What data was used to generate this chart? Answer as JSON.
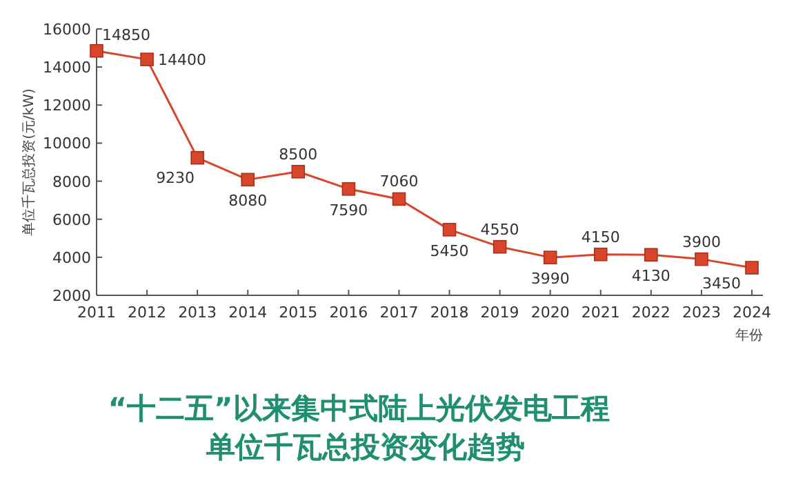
{
  "chart_data": {
    "type": "line",
    "title": "“十二五”以来集中式陆上光伏发电工程",
    "subtitle": "单位千瓦总投资变化趋势",
    "xlabel": "年份",
    "ylabel": "单位千瓦总投资(元/kW)",
    "categories": [
      "2011",
      "2012",
      "2013",
      "2014",
      "2015",
      "2016",
      "2017",
      "2018",
      "2019",
      "2020",
      "2021",
      "2022",
      "2023",
      "2024"
    ],
    "values": [
      14850,
      14400,
      9230,
      8080,
      8500,
      7590,
      7060,
      5450,
      4550,
      3990,
      4150,
      4130,
      3900,
      3450
    ],
    "color": "#d9452b",
    "marker": "square",
    "line_style": "solid",
    "data_labels": true,
    "grid": false,
    "ylim": [
      2000,
      16000
    ],
    "yticks": [
      2000,
      4000,
      6000,
      8000,
      10000,
      12000,
      14000,
      16000
    ]
  }
}
